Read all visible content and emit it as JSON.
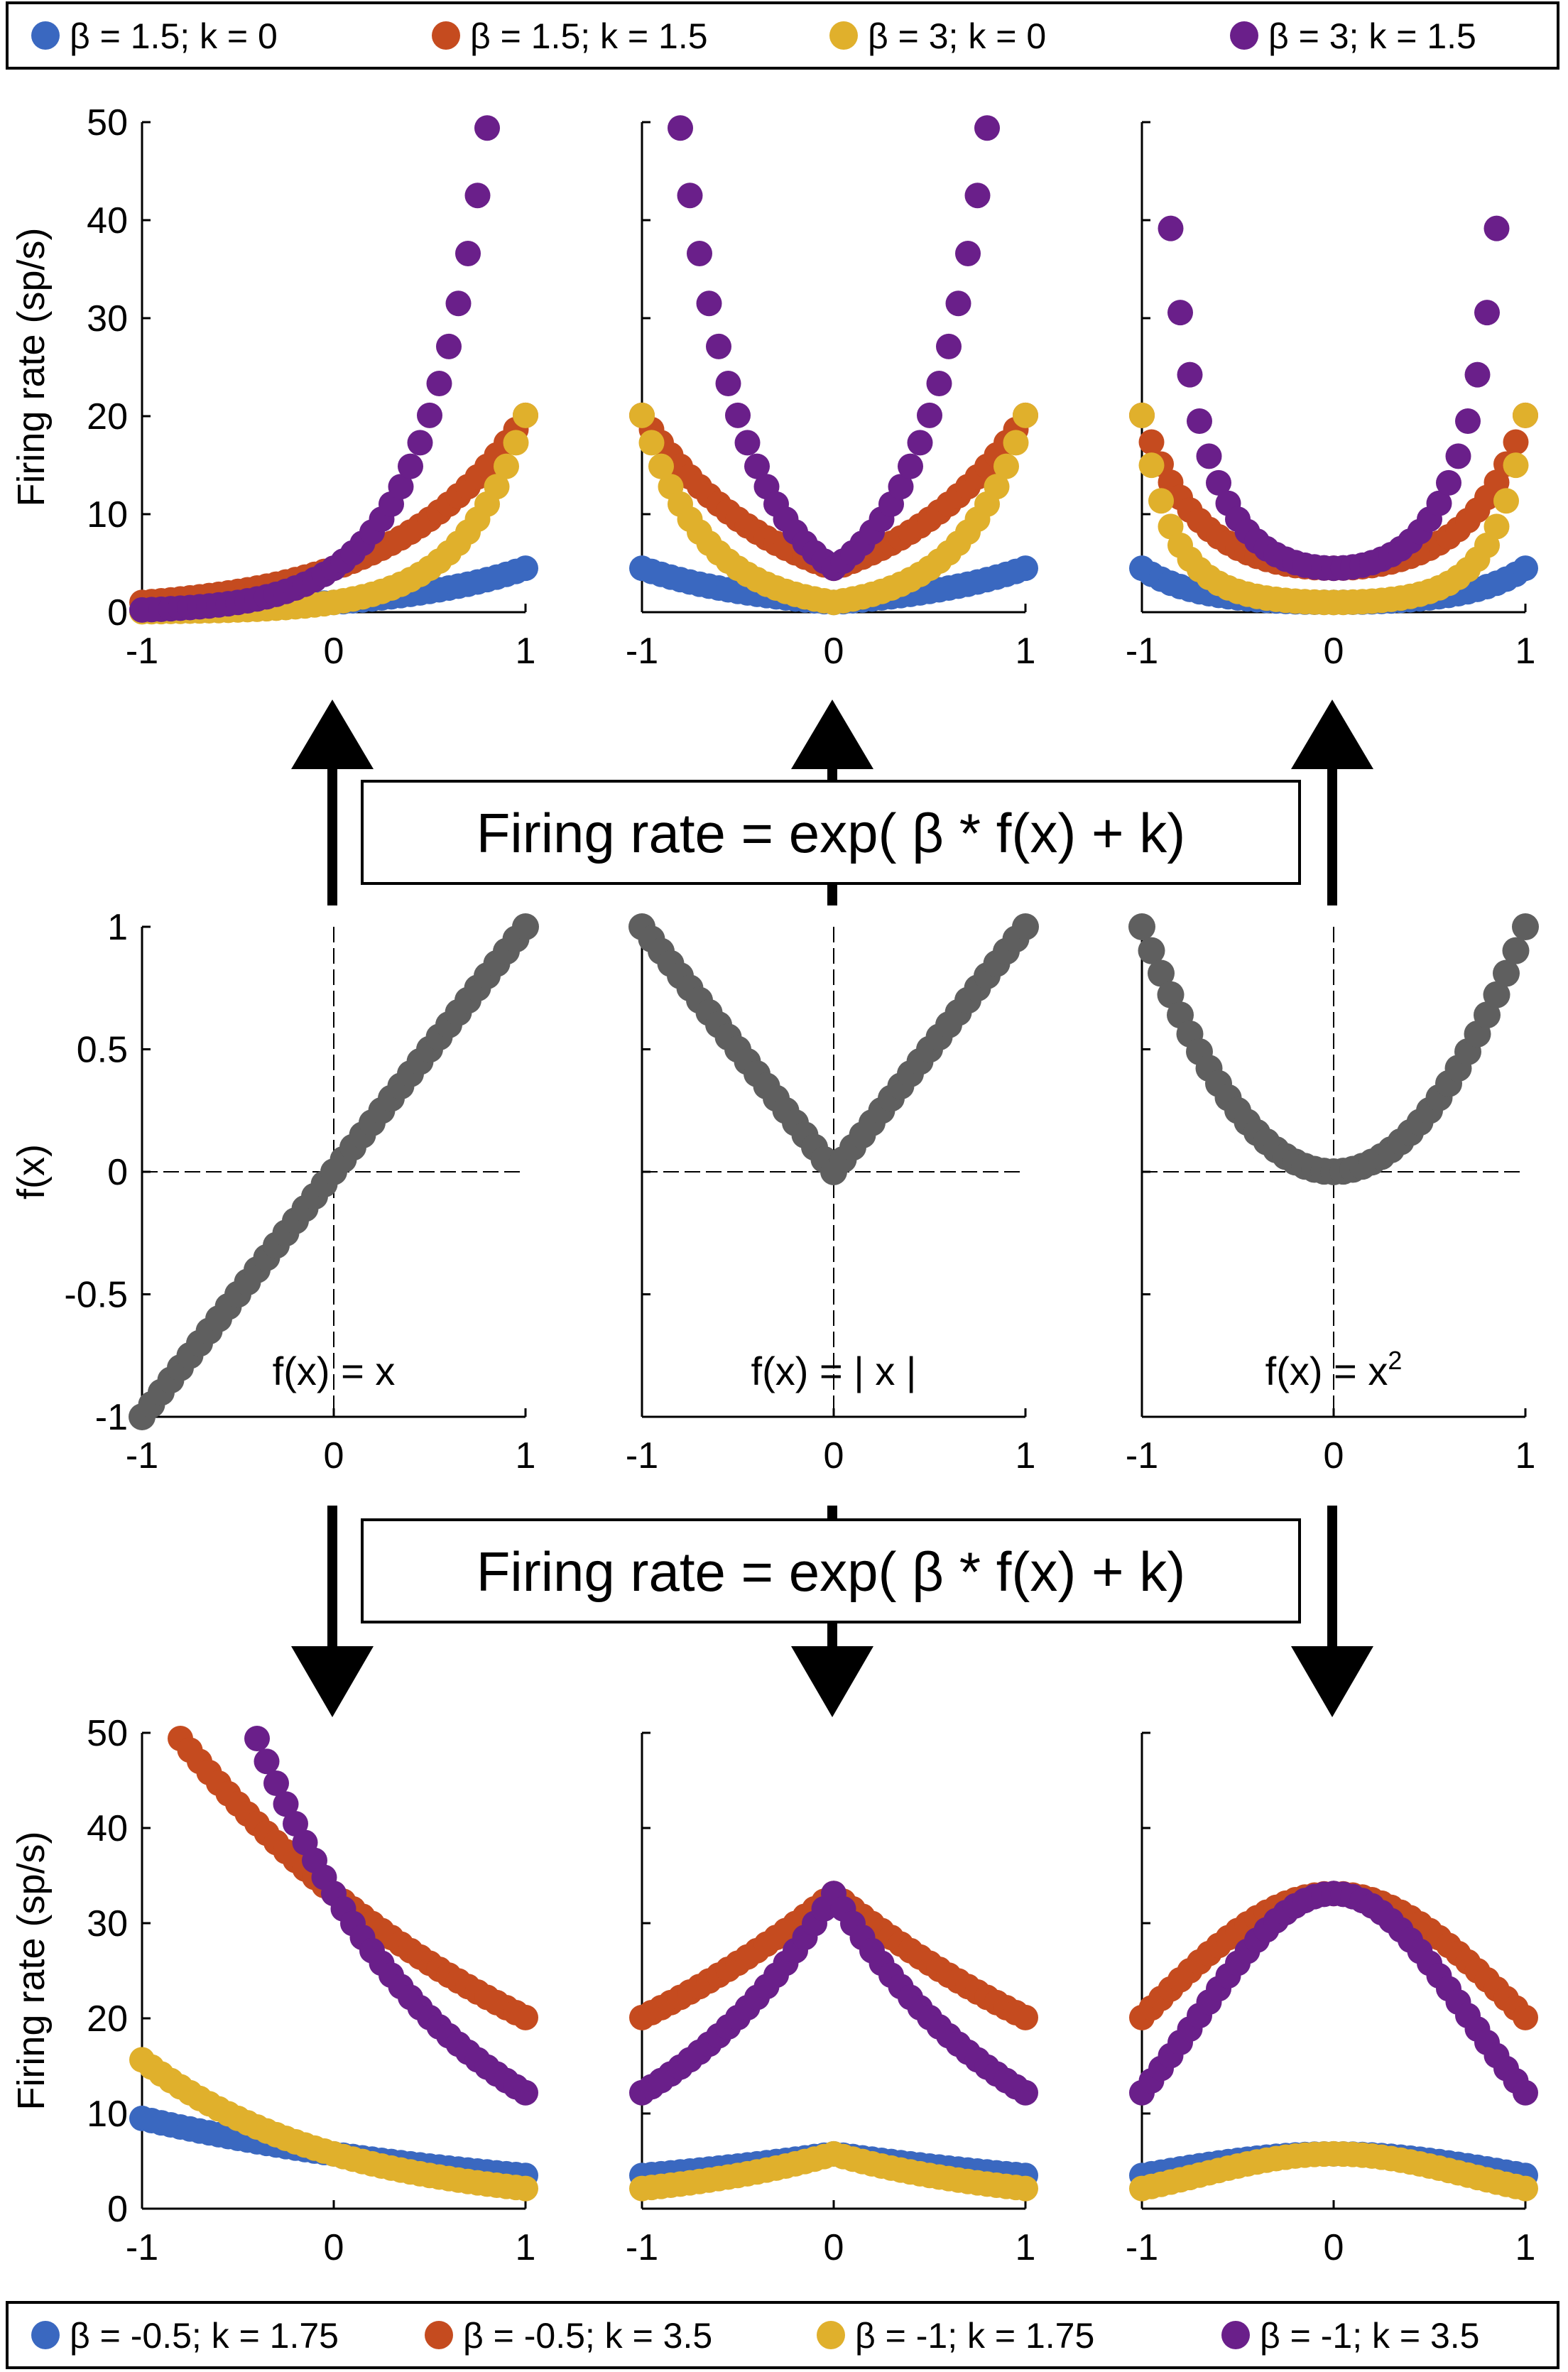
{
  "legend_top": [
    {
      "label": "β = 1.5; k = 0",
      "color": "#3a68c0"
    },
    {
      "label": "β = 1.5; k = 1.5",
      "color": "#c54b1f"
    },
    {
      "label": "β = 3; k = 0",
      "color": "#e0b02c"
    },
    {
      "label": "β = 3; k = 1.5",
      "color": "#6a1f8a"
    }
  ],
  "legend_bottom": [
    {
      "label": "β = -0.5; k = 1.75",
      "color": "#3a68c0"
    },
    {
      "label": "β = -0.5; k = 3.5",
      "color": "#c54b1f"
    },
    {
      "label": "β = -1; k = 1.75",
      "color": "#e0b02c"
    },
    {
      "label": "β = -1;  k = 3.5",
      "color": "#6a1f8a"
    }
  ],
  "equation_upper": "Firing rate = exp( β * f(x) + k)",
  "equation_lower": "Firing rate = exp( β * f(x) + k)",
  "chart_data": [
    {
      "type": "scatter",
      "panel": "top-row",
      "ylabel": "Firing rate (sp/s)",
      "xlabel": "",
      "xlim": [
        -1,
        1
      ],
      "ylim": [
        0,
        50
      ],
      "xticks": [
        "-1",
        "0",
        "1"
      ],
      "yticks": [
        "0",
        "10",
        "20",
        "30",
        "40",
        "50"
      ],
      "functions": [
        "x",
        "|x|",
        "x^2"
      ],
      "model": "rate = exp(beta * f(x) + k), points with rate > 50 not shown",
      "series": [
        {
          "name": "β = 1.5; k = 0",
          "beta": 1.5,
          "k": 0,
          "color": "#3a68c0"
        },
        {
          "name": "β = 1.5; k = 1.5",
          "beta": 1.5,
          "k": 1.5,
          "color": "#c54b1f"
        },
        {
          "name": "β = 3; k = 0",
          "beta": 3,
          "k": 0,
          "color": "#e0b02c"
        },
        {
          "name": "β = 3; k = 1.5",
          "beta": 3,
          "k": 1.5,
          "color": "#6a1f8a"
        }
      ]
    },
    {
      "type": "scatter",
      "panel": "middle-row",
      "ylabel": "f(x)",
      "xlabel": "",
      "xlim": [
        -1,
        1
      ],
      "ylim": [
        -1,
        1
      ],
      "xticks": [
        "-1",
        "0",
        "1"
      ],
      "yticks": [
        "-1",
        "-0.5",
        "0",
        "0.5",
        "1"
      ],
      "color": "#5f5f5f",
      "functions": [
        "x",
        "|x|",
        "x^2"
      ],
      "function_labels": [
        "f(x) = x",
        "f(x) = | x |",
        "f(x) = x"
      ],
      "square_superscript": "2"
    },
    {
      "type": "scatter",
      "panel": "bottom-row",
      "ylabel": "Firing rate (sp/s)",
      "xlabel": "",
      "xlim": [
        -1,
        1
      ],
      "ylim": [
        0,
        50
      ],
      "xticks": [
        "-1",
        "0",
        "1"
      ],
      "yticks": [
        "0",
        "10",
        "20",
        "30",
        "40",
        "50"
      ],
      "functions": [
        "x",
        "|x|",
        "x^2"
      ],
      "model": "rate = exp(beta * f(x) + k), points with rate > 50 not shown",
      "series": [
        {
          "name": "β = -0.5; k = 1.75",
          "beta": -0.5,
          "k": 1.75,
          "color": "#3a68c0"
        },
        {
          "name": "β = -0.5; k = 3.5",
          "beta": -0.5,
          "k": 3.5,
          "color": "#c54b1f"
        },
        {
          "name": "β = -1; k = 1.75",
          "beta": -1,
          "k": 1.75,
          "color": "#e0b02c"
        },
        {
          "name": "β = -1;  k = 3.5",
          "beta": -1,
          "k": 3.5,
          "color": "#6a1f8a"
        }
      ]
    }
  ]
}
